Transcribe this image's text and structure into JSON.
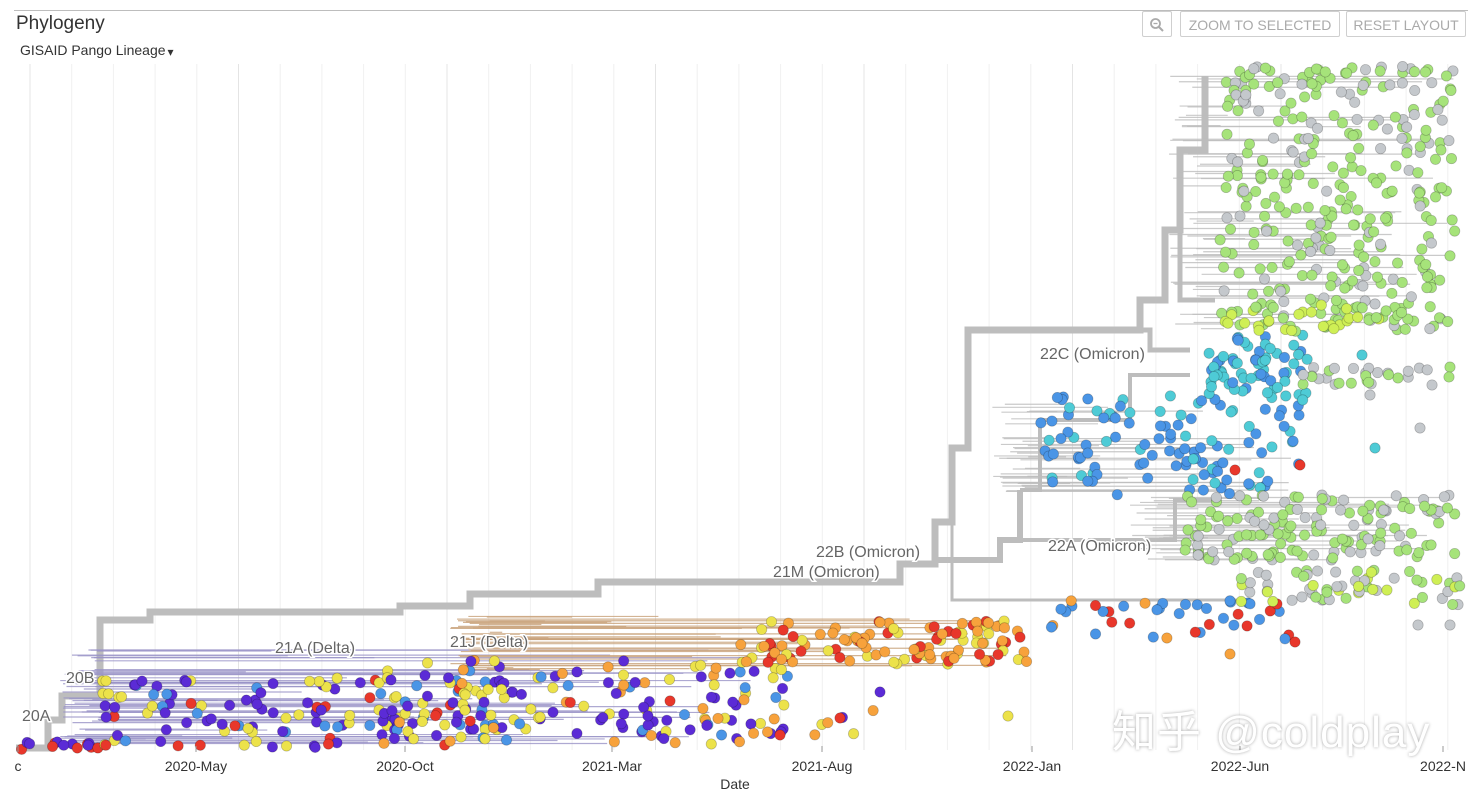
{
  "panel": {
    "title": "Phylogeny"
  },
  "color_by": {
    "label": "GISAID Pango Lineage"
  },
  "buttons": {
    "zoom_icon": "zoom-icon",
    "zoom_selected": "ZOOM TO SELECTED",
    "reset_layout": "RESET LAYOUT"
  },
  "x_axis": {
    "title": "Date",
    "ticks": [
      "c",
      "2020-May",
      "2020-Oct",
      "2021-Mar",
      "2021-Aug",
      "2022-Jan",
      "2022-Jun",
      "2022-N"
    ]
  },
  "clade_labels": [
    "20A",
    "20B",
    "21A (Delta)",
    "21J (Delta)",
    "21M (Omicron)",
    "22B (Omicron)",
    "22C (Omicron)",
    "22A (Omicron)"
  ],
  "colors": {
    "branch": "#bdbdbd",
    "purple": "#5b2bd6",
    "blue": "#4a95e6",
    "teal": "#4ecbd6",
    "yellow": "#ece24a",
    "orange": "#f7a23c",
    "red": "#e8372b",
    "light_green": "#a6e37a",
    "lime": "#cfef55",
    "grey": "#c4c8cc"
  },
  "watermark": "知乎 @coldplay"
}
